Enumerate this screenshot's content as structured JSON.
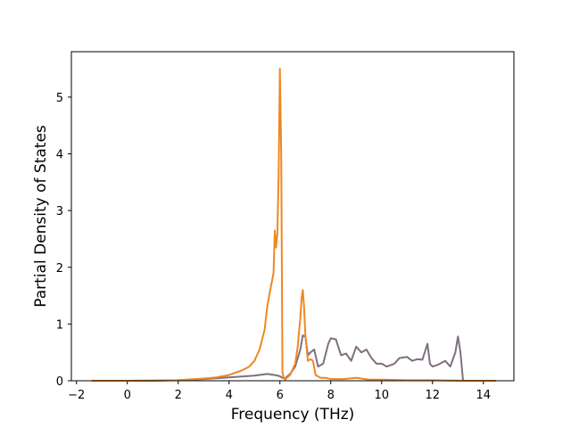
{
  "chart_data": {
    "type": "line",
    "title": "",
    "xlabel": "Frequency (THz)",
    "ylabel": "Partial Density of States",
    "xlim": [
      -2.2,
      15.2
    ],
    "ylim": [
      0,
      5.8
    ],
    "xticks": [
      -2,
      0,
      2,
      4,
      6,
      8,
      10,
      12,
      14
    ],
    "yticks": [
      0,
      1,
      2,
      3,
      4,
      5
    ],
    "xtick_labels": [
      "−2",
      "0",
      "2",
      "4",
      "6",
      "8",
      "10",
      "12",
      "14"
    ],
    "ytick_labels": [
      "0",
      "1",
      "2",
      "3",
      "4",
      "5"
    ],
    "grid": false,
    "legend": false,
    "series": [
      {
        "color": "#7f6f7f",
        "x": [
          -1.4,
          0.0,
          1.0,
          2.0,
          3.0,
          4.0,
          5.0,
          5.5,
          5.8,
          6.0,
          6.1,
          6.2,
          6.4,
          6.6,
          6.8,
          6.9,
          7.0,
          7.1,
          7.2,
          7.35,
          7.5,
          7.7,
          7.9,
          8.0,
          8.2,
          8.4,
          8.6,
          8.8,
          9.0,
          9.2,
          9.4,
          9.6,
          9.8,
          10.0,
          10.2,
          10.5,
          10.7,
          11.0,
          11.2,
          11.4,
          11.6,
          11.8,
          11.9,
          12.0,
          12.2,
          12.5,
          12.7,
          12.9,
          13.0,
          13.1,
          13.2,
          14.5
        ],
        "y": [
          0,
          0,
          0,
          0.01,
          0.03,
          0.06,
          0.09,
          0.12,
          0.1,
          0.08,
          0.05,
          0.04,
          0.12,
          0.25,
          0.55,
          0.8,
          0.78,
          0.45,
          0.5,
          0.55,
          0.25,
          0.3,
          0.65,
          0.75,
          0.73,
          0.45,
          0.48,
          0.35,
          0.6,
          0.5,
          0.55,
          0.4,
          0.3,
          0.3,
          0.25,
          0.3,
          0.4,
          0.42,
          0.35,
          0.38,
          0.37,
          0.65,
          0.3,
          0.25,
          0.28,
          0.35,
          0.25,
          0.5,
          0.78,
          0.5,
          0,
          0
        ]
      },
      {
        "color": "#ee8822",
        "x": [
          -1.4,
          0.0,
          2.0,
          3.0,
          3.5,
          4.0,
          4.5,
          4.8,
          5.0,
          5.2,
          5.4,
          5.5,
          5.6,
          5.75,
          5.8,
          5.85,
          5.9,
          5.95,
          6.0,
          6.05,
          6.1,
          6.15,
          6.2,
          6.4,
          6.6,
          6.7,
          6.8,
          6.85,
          6.9,
          6.95,
          7.0,
          7.1,
          7.2,
          7.3,
          7.4,
          7.6,
          7.8,
          8.0,
          8.5,
          9.0,
          9.5,
          10.0,
          11.0,
          12.0,
          13.2,
          14.5
        ],
        "y": [
          0,
          0,
          0.01,
          0.04,
          0.06,
          0.1,
          0.18,
          0.25,
          0.35,
          0.55,
          0.9,
          1.3,
          1.55,
          1.9,
          2.65,
          2.35,
          2.6,
          3.6,
          5.5,
          4.0,
          0.15,
          0.05,
          0.02,
          0.1,
          0.3,
          0.6,
          1.1,
          1.45,
          1.6,
          1.3,
          0.8,
          0.35,
          0.38,
          0.35,
          0.1,
          0.05,
          0.05,
          0.03,
          0.03,
          0.05,
          0.02,
          0.02,
          0.01,
          0.01,
          0,
          0
        ]
      }
    ]
  }
}
